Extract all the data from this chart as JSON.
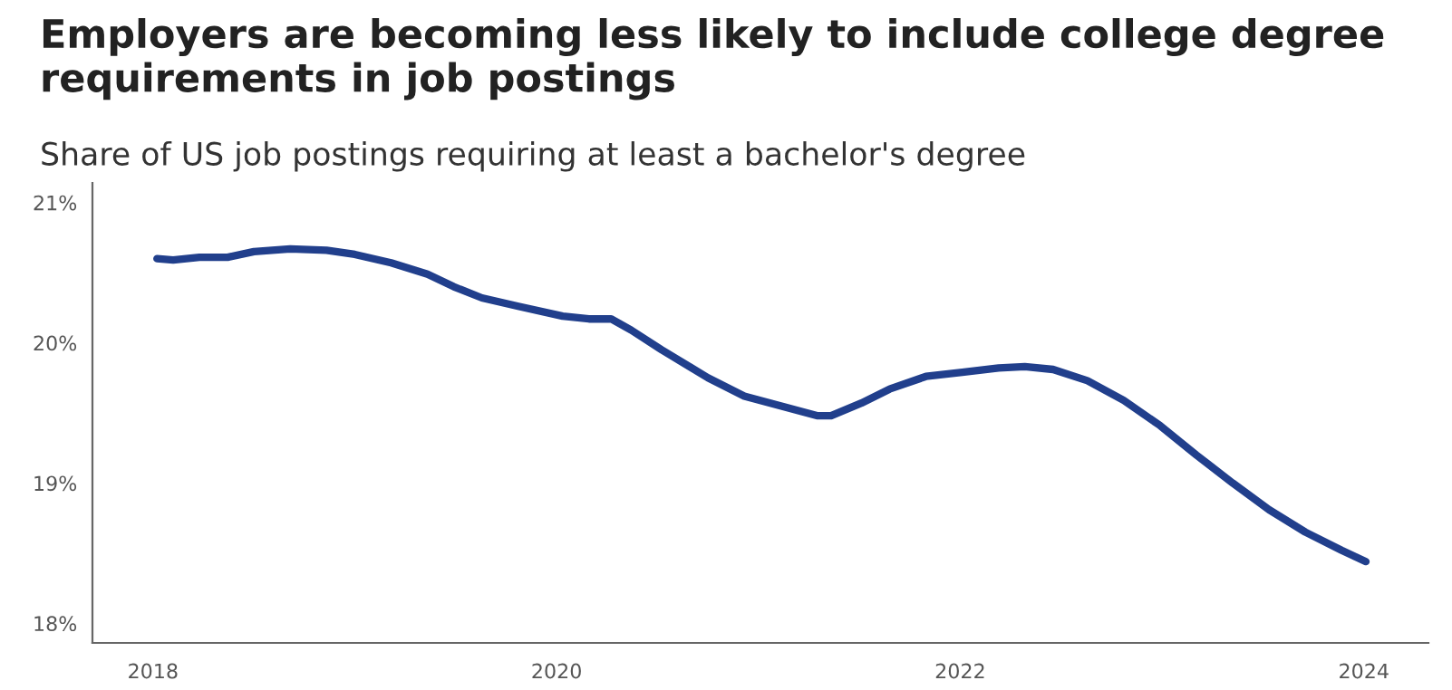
{
  "chart_data": {
    "type": "line",
    "title": "Employers are becoming less likely to include college degree requirements in job postings",
    "subtitle": "Share of US job postings requiring at least a bachelor's degree",
    "x": [
      2018.02,
      2018.1,
      2018.23,
      2018.37,
      2018.5,
      2018.68,
      2018.86,
      2019.0,
      2019.18,
      2019.36,
      2019.49,
      2019.63,
      2019.81,
      2020.03,
      2020.16,
      2020.27,
      2020.37,
      2020.52,
      2020.75,
      2020.93,
      2021.11,
      2021.29,
      2021.36,
      2021.51,
      2021.65,
      2021.83,
      2022.01,
      2022.19,
      2022.32,
      2022.46,
      2022.63,
      2022.81,
      2022.99,
      2023.17,
      2023.35,
      2023.53,
      2023.71,
      2023.89,
      2024.01
    ],
    "series": [
      {
        "color": "#213f8c",
        "values": [
          20.6,
          20.59,
          20.61,
          20.61,
          20.65,
          20.67,
          20.66,
          20.63,
          20.57,
          20.49,
          20.4,
          20.32,
          20.26,
          20.19,
          20.17,
          20.17,
          20.09,
          19.95,
          19.75,
          19.62,
          19.55,
          19.48,
          19.48,
          19.57,
          19.67,
          19.76,
          19.79,
          19.82,
          19.83,
          19.81,
          19.73,
          19.59,
          19.41,
          19.2,
          19.0,
          18.81,
          18.65,
          18.52,
          18.44
        ]
      }
    ],
    "xlim": [
      2017.7,
      2024.32
    ],
    "xticks": [
      2018,
      2020,
      2022,
      2024
    ],
    "ylim": [
      17.86,
      21.14
    ],
    "yticks": [
      {
        "value": 18,
        "label": "18%"
      },
      {
        "value": 19,
        "label": "19%"
      },
      {
        "value": 20,
        "label": "20%"
      },
      {
        "value": 21,
        "label": "21%"
      }
    ],
    "grid": false,
    "marker": "none",
    "line_style": "solid"
  }
}
